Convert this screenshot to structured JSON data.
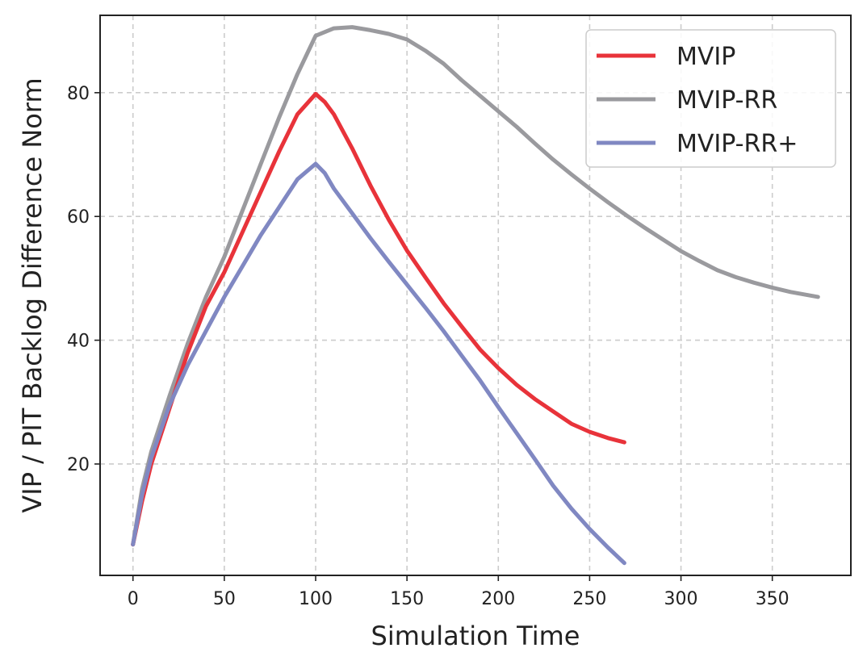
{
  "chart_data": {
    "type": "line",
    "title": "",
    "xlabel": "Simulation Time",
    "ylabel": "VIP / PIT Backlog Difference Norm",
    "xlim": [
      -18,
      393
    ],
    "ylim": [
      2,
      92.5
    ],
    "xticks": [
      0,
      50,
      100,
      150,
      200,
      250,
      300,
      350
    ],
    "yticks": [
      20,
      40,
      60,
      80
    ],
    "grid": true,
    "legend_position": "top-right",
    "series": [
      {
        "name": "MVIP",
        "color": "#e8333a",
        "x": [
          0,
          5,
          10,
          20,
          30,
          40,
          50,
          60,
          70,
          80,
          90,
          100,
          105,
          110,
          120,
          130,
          140,
          150,
          160,
          170,
          180,
          190,
          200,
          210,
          220,
          230,
          240,
          250,
          260,
          269
        ],
        "y": [
          7,
          14,
          20,
          29,
          38,
          45.5,
          51,
          57.5,
          64,
          70.5,
          76.5,
          79.8,
          78.5,
          76.5,
          71,
          65,
          59.5,
          54.5,
          50.2,
          46,
          42.2,
          38.5,
          35.5,
          32.8,
          30.5,
          28.5,
          26.5,
          25.2,
          24.2,
          23.5
        ]
      },
      {
        "name": "MVIP-RR",
        "color": "#9a9a9e",
        "x": [
          0,
          5,
          10,
          20,
          30,
          40,
          50,
          60,
          70,
          80,
          90,
          100,
          110,
          120,
          130,
          140,
          150,
          160,
          170,
          180,
          190,
          200,
          210,
          220,
          230,
          240,
          250,
          260,
          270,
          280,
          290,
          300,
          310,
          320,
          330,
          340,
          350,
          360,
          375
        ],
        "y": [
          7,
          16,
          22,
          31,
          39.5,
          47,
          53.5,
          61,
          68.5,
          76,
          83,
          89.2,
          90.4,
          90.6,
          90.1,
          89.5,
          88.6,
          86.8,
          84.7,
          82,
          79.5,
          77,
          74.5,
          71.8,
          69.2,
          66.8,
          64.5,
          62.3,
          60.2,
          58.2,
          56.3,
          54.4,
          52.8,
          51.3,
          50.2,
          49.3,
          48.5,
          47.8,
          47
        ]
      },
      {
        "name": "MVIP-RR+",
        "color": "#8088c2",
        "x": [
          0,
          5,
          10,
          20,
          30,
          40,
          50,
          60,
          70,
          80,
          90,
          100,
          105,
          110,
          120,
          130,
          140,
          150,
          160,
          170,
          180,
          190,
          200,
          210,
          220,
          230,
          240,
          250,
          260,
          269
        ],
        "y": [
          7,
          15,
          21,
          29.5,
          36,
          41.5,
          47,
          52,
          57,
          61.5,
          66,
          68.5,
          67,
          64.5,
          60.5,
          56.5,
          52.7,
          49,
          45.3,
          41.5,
          37.5,
          33.5,
          29.2,
          25,
          20.8,
          16.5,
          12.8,
          9.5,
          6.5,
          4
        ]
      }
    ]
  }
}
